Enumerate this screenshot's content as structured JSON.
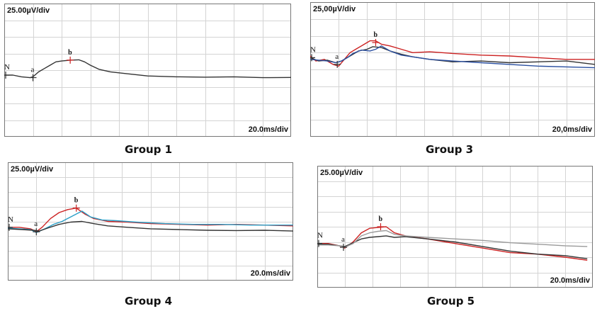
{
  "figure": {
    "captions": [
      "Group 1",
      "Group 3",
      "Group 4",
      "Group 5"
    ]
  },
  "chart_data": [
    {
      "type": "line",
      "amplitude_scale": "25.00µV/div",
      "time_scale": "20.0ms/div",
      "caption": "Group 1",
      "grid": true,
      "x_unit": "div",
      "y_unit": "div",
      "series": [
        {
          "color": "#333333",
          "values": [
            [
              0,
              3.7
            ],
            [
              0.3,
              3.7
            ],
            [
              0.6,
              3.6
            ],
            [
              0.9,
              3.55
            ],
            [
              1.0,
              3.6
            ],
            [
              1.2,
              3.9
            ],
            [
              1.4,
              4.1
            ],
            [
              1.6,
              4.3
            ],
            [
              1.8,
              4.5
            ],
            [
              2.0,
              4.55
            ],
            [
              2.3,
              4.6
            ],
            [
              2.6,
              4.62
            ],
            [
              2.8,
              4.5
            ],
            [
              3.0,
              4.3
            ],
            [
              3.3,
              4.05
            ],
            [
              3.7,
              3.9
            ],
            [
              4.2,
              3.8
            ],
            [
              5.0,
              3.65
            ],
            [
              6.0,
              3.6
            ],
            [
              7.0,
              3.58
            ],
            [
              8.0,
              3.6
            ],
            [
              9.0,
              3.55
            ],
            [
              10.0,
              3.56
            ]
          ]
        }
      ],
      "markers": [
        {
          "label": "N",
          "x": 0.05,
          "y": 3.7
        },
        {
          "label": "a",
          "x": 1.0,
          "y": 3.55
        },
        {
          "label": "b",
          "x": 2.3,
          "y": 4.6
        }
      ]
    },
    {
      "type": "line",
      "amplitude_scale": "25,00µV/div",
      "time_scale": "20,0ms/div",
      "caption": "Group 3",
      "grid": true,
      "x_unit": "div",
      "y_unit": "div",
      "series": [
        {
          "color": "#cc2222",
          "values": [
            [
              0,
              4.8
            ],
            [
              0.2,
              4.5
            ],
            [
              0.5,
              4.6
            ],
            [
              0.8,
              4.3
            ],
            [
              1.0,
              4.2
            ],
            [
              1.2,
              4.6
            ],
            [
              1.4,
              5.0
            ],
            [
              1.6,
              5.2
            ],
            [
              1.9,
              5.5
            ],
            [
              2.1,
              5.7
            ],
            [
              2.3,
              5.7
            ],
            [
              2.5,
              5.5
            ],
            [
              2.8,
              5.4
            ],
            [
              3.2,
              5.2
            ],
            [
              3.6,
              5.0
            ],
            [
              4.2,
              5.05
            ],
            [
              5.0,
              4.95
            ],
            [
              6.0,
              4.85
            ],
            [
              7.0,
              4.8
            ],
            [
              8.0,
              4.7
            ],
            [
              9.0,
              4.6
            ],
            [
              10.0,
              4.6
            ]
          ]
        },
        {
          "color": "#333333",
          "values": [
            [
              0,
              4.7
            ],
            [
              0.3,
              4.5
            ],
            [
              0.6,
              4.55
            ],
            [
              0.9,
              4.4
            ],
            [
              1.1,
              4.5
            ],
            [
              1.4,
              4.8
            ],
            [
              1.7,
              5.1
            ],
            [
              2.0,
              5.2
            ],
            [
              2.2,
              5.35
            ],
            [
              2.5,
              5.3
            ],
            [
              2.8,
              5.1
            ],
            [
              3.2,
              4.9
            ],
            [
              3.6,
              4.75
            ],
            [
              4.2,
              4.6
            ],
            [
              5.0,
              4.45
            ],
            [
              6.0,
              4.5
            ],
            [
              7.0,
              4.4
            ],
            [
              8.0,
              4.45
            ],
            [
              9.0,
              4.5
            ],
            [
              10.0,
              4.3
            ]
          ]
        },
        {
          "color": "#2a4fa0",
          "values": [
            [
              0,
              4.6
            ],
            [
              0.3,
              4.55
            ],
            [
              0.6,
              4.5
            ],
            [
              0.9,
              4.4
            ],
            [
              1.1,
              4.5
            ],
            [
              1.3,
              4.7
            ],
            [
              1.5,
              4.95
            ],
            [
              1.8,
              5.15
            ],
            [
              2.1,
              5.1
            ],
            [
              2.3,
              5.2
            ],
            [
              2.5,
              5.4
            ],
            [
              2.8,
              5.1
            ],
            [
              3.2,
              4.85
            ],
            [
              3.6,
              4.75
            ],
            [
              4.2,
              4.6
            ],
            [
              5.0,
              4.5
            ],
            [
              6.0,
              4.4
            ],
            [
              7.0,
              4.3
            ],
            [
              8.0,
              4.2
            ],
            [
              9.0,
              4.15
            ],
            [
              10.0,
              4.1
            ]
          ]
        }
      ],
      "markers": [
        {
          "label": "N",
          "x": 0.05,
          "y": 4.7
        },
        {
          "label": "a",
          "x": 0.95,
          "y": 4.3
        },
        {
          "label": "b",
          "x": 2.3,
          "y": 5.6
        }
      ]
    },
    {
      "type": "line",
      "amplitude_scale": "25.00µV/div",
      "time_scale": "20.0ms/div",
      "caption": "Group 4",
      "grid": true,
      "x_unit": "div",
      "y_unit": "div",
      "series": [
        {
          "color": "#cc2222",
          "values": [
            [
              0,
              3.6
            ],
            [
              0.4,
              3.6
            ],
            [
              0.8,
              3.5
            ],
            [
              1.0,
              3.3
            ],
            [
              1.2,
              3.6
            ],
            [
              1.5,
              4.2
            ],
            [
              1.8,
              4.6
            ],
            [
              2.1,
              4.8
            ],
            [
              2.4,
              4.9
            ],
            [
              2.7,
              4.5
            ],
            [
              3.0,
              4.2
            ],
            [
              3.5,
              4.0
            ],
            [
              4.2,
              3.95
            ],
            [
              5.0,
              3.85
            ],
            [
              6.0,
              3.8
            ],
            [
              7.0,
              3.75
            ],
            [
              8.0,
              3.8
            ],
            [
              9.0,
              3.75
            ],
            [
              10.0,
              3.7
            ]
          ]
        },
        {
          "color": "#2b9fc7",
          "values": [
            [
              0,
              3.55
            ],
            [
              0.4,
              3.5
            ],
            [
              0.8,
              3.45
            ],
            [
              1.0,
              3.25
            ],
            [
              1.3,
              3.5
            ],
            [
              1.6,
              3.8
            ],
            [
              1.9,
              4.0
            ],
            [
              2.2,
              4.3
            ],
            [
              2.6,
              4.7
            ],
            [
              2.9,
              4.3
            ],
            [
              3.3,
              4.1
            ],
            [
              3.8,
              4.05
            ],
            [
              4.5,
              3.95
            ],
            [
              5.5,
              3.85
            ],
            [
              6.5,
              3.8
            ],
            [
              7.5,
              3.8
            ],
            [
              8.5,
              3.75
            ],
            [
              10.0,
              3.75
            ]
          ]
        },
        {
          "color": "#333333",
          "values": [
            [
              0,
              3.5
            ],
            [
              0.5,
              3.45
            ],
            [
              0.9,
              3.4
            ],
            [
              1.1,
              3.35
            ],
            [
              1.4,
              3.55
            ],
            [
              1.8,
              3.8
            ],
            [
              2.2,
              3.95
            ],
            [
              2.6,
              4.0
            ],
            [
              3.0,
              3.85
            ],
            [
              3.5,
              3.7
            ],
            [
              4.2,
              3.6
            ],
            [
              5.0,
              3.5
            ],
            [
              6.0,
              3.45
            ],
            [
              7.0,
              3.4
            ],
            [
              8.0,
              3.38
            ],
            [
              9.0,
              3.4
            ],
            [
              10.0,
              3.35
            ]
          ]
        }
      ],
      "markers": [
        {
          "label": "N",
          "x": 0.05,
          "y": 3.6
        },
        {
          "label": "a",
          "x": 1.0,
          "y": 3.3
        },
        {
          "label": "b",
          "x": 2.4,
          "y": 4.9
        }
      ]
    },
    {
      "type": "line",
      "amplitude_scale": "25.00µV/div",
      "time_scale": "20.0ms/div",
      "caption": "Group 5",
      "grid": true,
      "x_unit": "div",
      "y_unit": "div",
      "series": [
        {
          "color": "#cc2222",
          "values": [
            [
              0,
              2.9
            ],
            [
              0.4,
              2.9
            ],
            [
              0.8,
              2.75
            ],
            [
              1.0,
              2.6
            ],
            [
              1.3,
              3.0
            ],
            [
              1.6,
              3.6
            ],
            [
              1.9,
              3.9
            ],
            [
              2.2,
              3.95
            ],
            [
              2.5,
              4.0
            ],
            [
              2.8,
              3.6
            ],
            [
              3.2,
              3.4
            ],
            [
              4.0,
              3.2
            ],
            [
              5.0,
              2.9
            ],
            [
              6.0,
              2.6
            ],
            [
              7.0,
              2.3
            ],
            [
              8.0,
              2.2
            ],
            [
              9.0,
              2.0
            ],
            [
              9.8,
              1.8
            ]
          ]
        },
        {
          "color": "#333333",
          "values": [
            [
              0,
              2.85
            ],
            [
              0.4,
              2.85
            ],
            [
              0.8,
              2.75
            ],
            [
              1.0,
              2.7
            ],
            [
              1.3,
              2.95
            ],
            [
              1.6,
              3.2
            ],
            [
              1.9,
              3.3
            ],
            [
              2.2,
              3.35
            ],
            [
              2.5,
              3.4
            ],
            [
              2.8,
              3.3
            ],
            [
              3.2,
              3.35
            ],
            [
              4.0,
              3.2
            ],
            [
              5.0,
              3.0
            ],
            [
              6.0,
              2.7
            ],
            [
              7.0,
              2.4
            ],
            [
              8.0,
              2.2
            ],
            [
              9.0,
              2.1
            ],
            [
              9.8,
              1.9
            ]
          ]
        },
        {
          "color": "#9a9a9a",
          "values": [
            [
              0,
              2.8
            ],
            [
              0.4,
              2.8
            ],
            [
              0.8,
              2.75
            ],
            [
              1.0,
              2.65
            ],
            [
              1.3,
              2.9
            ],
            [
              1.6,
              3.4
            ],
            [
              1.9,
              3.6
            ],
            [
              2.2,
              3.7
            ],
            [
              2.5,
              3.75
            ],
            [
              2.8,
              3.5
            ],
            [
              3.2,
              3.4
            ],
            [
              4.0,
              3.3
            ],
            [
              5.0,
              3.2
            ],
            [
              6.0,
              3.1
            ],
            [
              7.0,
              2.95
            ],
            [
              8.0,
              2.85
            ],
            [
              9.0,
              2.75
            ],
            [
              9.8,
              2.7
            ]
          ]
        }
      ],
      "markers": [
        {
          "label": "N",
          "x": 0.05,
          "y": 2.9
        },
        {
          "label": "a",
          "x": 0.95,
          "y": 2.65
        },
        {
          "label": "b",
          "x": 2.3,
          "y": 4.0
        }
      ]
    }
  ]
}
